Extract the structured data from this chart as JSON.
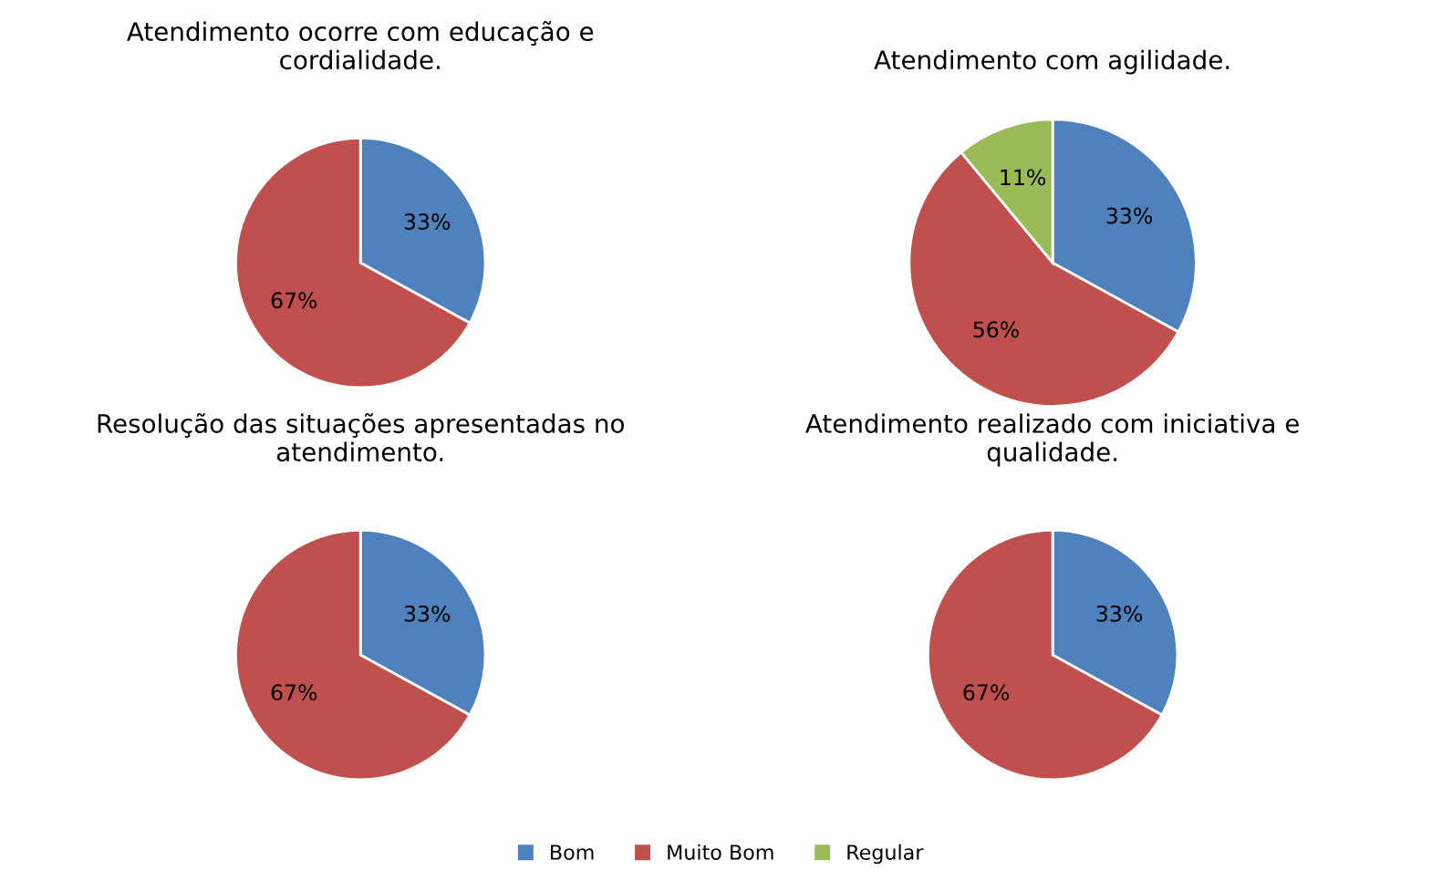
{
  "chart_data": [
    {
      "type": "pie",
      "title": "Atendimento ocorre com educação e\ncordialidade.",
      "categories": [
        null,
        null
      ],
      "values": [
        33,
        67
      ],
      "colors": [
        "#4f81bd",
        "#c0504d"
      ],
      "value_labels": [
        "33%",
        "67%"
      ]
    },
    {
      "type": "pie",
      "title": "Atendimento com agilidade.",
      "categories": [
        "Bom",
        "Muito Bom",
        "Regular"
      ],
      "values": [
        33,
        56,
        11
      ],
      "colors": [
        "#4f81bd",
        "#c0504d",
        "#9bbb59"
      ],
      "value_labels": [
        "33%",
        "56%",
        "11%"
      ],
      "legend": "bottom"
    },
    {
      "type": "pie",
      "title": "Resolução das situações apresentadas no\natendimento.",
      "categories": [
        null,
        null
      ],
      "values": [
        33,
        67
      ],
      "colors": [
        "#4f81bd",
        "#c0504d"
      ],
      "value_labels": [
        "33%",
        "67%"
      ]
    },
    {
      "type": "pie",
      "title": "Atendimento realizado com iniciativa e\nqualidade.",
      "categories": [
        null,
        null
      ],
      "values": [
        33,
        67
      ],
      "colors": [
        "#4f81bd",
        "#c0504d"
      ],
      "value_labels": [
        "33%",
        "67%"
      ]
    }
  ]
}
